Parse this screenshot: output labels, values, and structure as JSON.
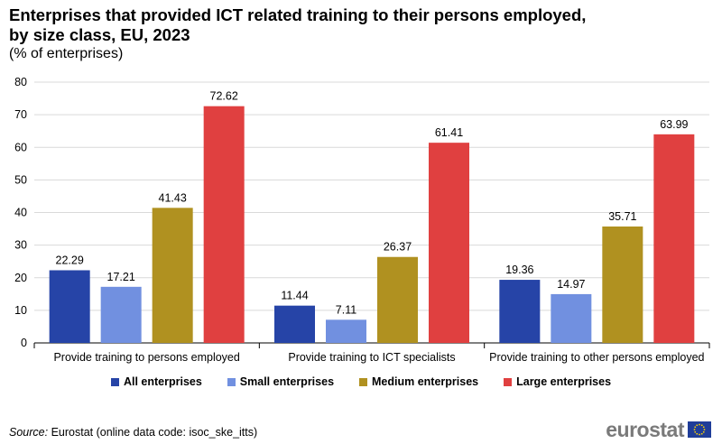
{
  "title": "Enterprises that provided ICT related training to their persons employed, by size class, EU, 2023",
  "subtitle": "(% of enterprises)",
  "source_label": "Source:",
  "source_text": " Eurostat (online data code: isoc_ske_itts)",
  "logo_text": "eurostat",
  "colors": {
    "all": "#2644a7",
    "small": "#7190e0",
    "medium": "#b09120",
    "large": "#e04040"
  },
  "chart_data": {
    "type": "bar",
    "categories": [
      "Provide training to persons employed",
      "Provide training to ICT specialists",
      "Provide training to other persons employed"
    ],
    "series": [
      {
        "name": "All enterprises",
        "color": "#2644a7",
        "values": [
          22.29,
          11.44,
          19.36
        ]
      },
      {
        "name": "Small enterprises",
        "color": "#7190e0",
        "values": [
          17.21,
          7.11,
          14.97
        ]
      },
      {
        "name": "Medium enterprises",
        "color": "#b09120",
        "values": [
          41.43,
          26.37,
          35.71
        ]
      },
      {
        "name": "Large enterprises",
        "color": "#e04040",
        "values": [
          72.62,
          61.41,
          63.99
        ]
      }
    ],
    "value_labels": [
      [
        "22.29",
        "11.44",
        "19.36"
      ],
      [
        "17.21",
        "7.11",
        "14.97"
      ],
      [
        "41.43",
        "26.37",
        "35.71"
      ],
      [
        "72.62",
        "61.41",
        "63.99"
      ]
    ],
    "yticks": [
      0,
      10,
      20,
      30,
      40,
      50,
      60,
      70,
      80
    ],
    "ylim": [
      0,
      80
    ],
    "grid": true,
    "legend_position": "bottom",
    "xlabel": "",
    "ylabel": ""
  }
}
